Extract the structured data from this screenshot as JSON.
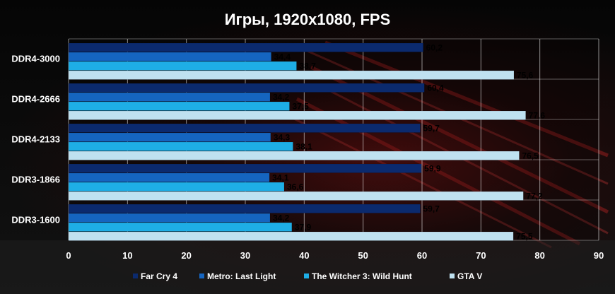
{
  "chart_data": {
    "type": "bar",
    "orientation": "horizontal",
    "title": "Игры, 1920x1080, FPS",
    "xlabel": "",
    "ylabel": "",
    "xlim": [
      0,
      90
    ],
    "ticks": [
      0,
      10,
      20,
      30,
      40,
      50,
      60,
      70,
      80,
      90
    ],
    "grid": true,
    "legend_position": "bottom",
    "categories": [
      "DDR4-3000",
      "DDR4-2666",
      "DDR4-2133",
      "DDR3-1866",
      "DDR3-1600"
    ],
    "series": [
      {
        "name": "Far Cry 4",
        "color": "#0b2a6e",
        "values": [
          60.2,
          60.4,
          59.7,
          59.9,
          59.7
        ],
        "labels": [
          "60,2",
          "60,4",
          "59,7",
          "59,9",
          "59,7"
        ]
      },
      {
        "name": "Metro: Last Light",
        "color": "#1565c0",
        "values": [
          34.4,
          34.2,
          34.3,
          34.1,
          34.2
        ],
        "labels": [
          "34,4",
          "34,2",
          "34,3",
          "34,1",
          "34,2"
        ]
      },
      {
        "name": "The Witcher 3: Wild Hunt",
        "color": "#1eaee6",
        "values": [
          38.7,
          37.5,
          38.1,
          36.6,
          37.9
        ],
        "labels": [
          "38,7",
          "37,5",
          "38,1",
          "36,6",
          "37,9"
        ]
      },
      {
        "name": "GTA V",
        "color": "#bfe1f0",
        "values": [
          75.6,
          77.6,
          76.5,
          77.2,
          75.5
        ],
        "labels": [
          "75,6",
          "77,6",
          "76,5",
          "77,2",
          "75,5"
        ]
      }
    ]
  }
}
